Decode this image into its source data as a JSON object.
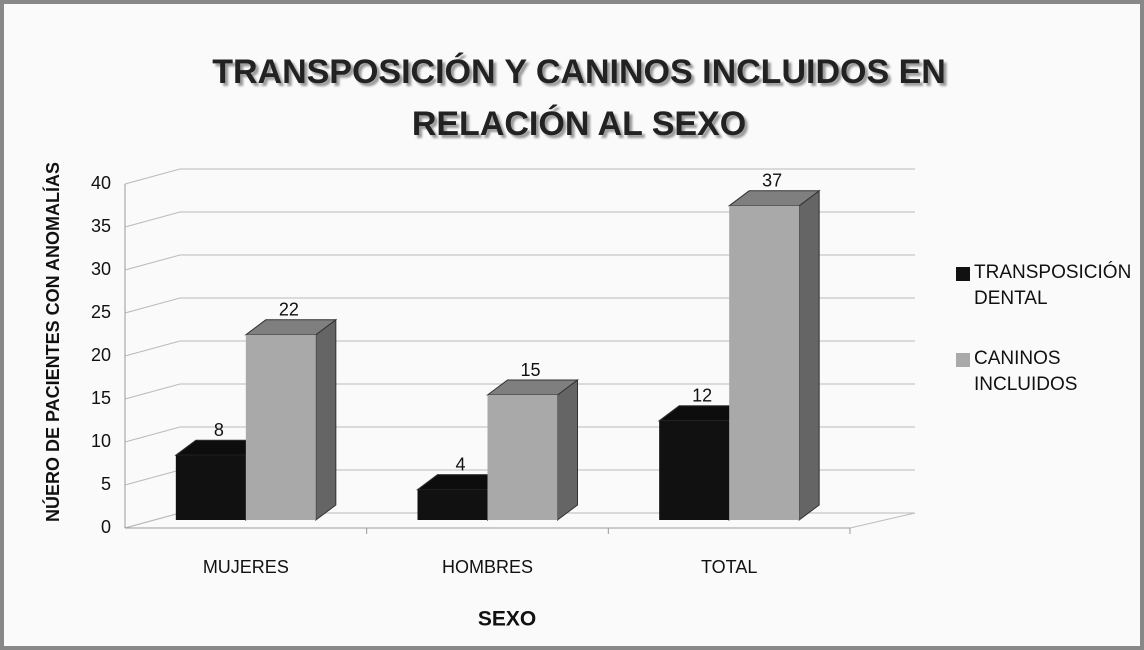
{
  "chart_data": {
    "type": "bar3d",
    "title": "TRANSPOSICIÓN Y CANINOS INCLUIDOS EN RELACIÓN AL SEXO",
    "x_label": "SEXO",
    "y_label": "NÚERO DE  PACIENTES CON ANOMALÍAS",
    "categories": [
      "MUJERES",
      "HOMBRES",
      "TOTAL"
    ],
    "series": [
      {
        "name": "TRANSPOSICIÓN DENTAL",
        "color": "#111111",
        "values": [
          8,
          4,
          12
        ]
      },
      {
        "name": "CANINOS INCLUIDOS",
        "color": "#a9a9a9",
        "values": [
          22,
          15,
          37
        ]
      }
    ],
    "ylim": [
      0,
      40
    ],
    "yticks": [
      0,
      5,
      10,
      15,
      20,
      25,
      30,
      35,
      40
    ],
    "grid": true,
    "legend": "right"
  }
}
